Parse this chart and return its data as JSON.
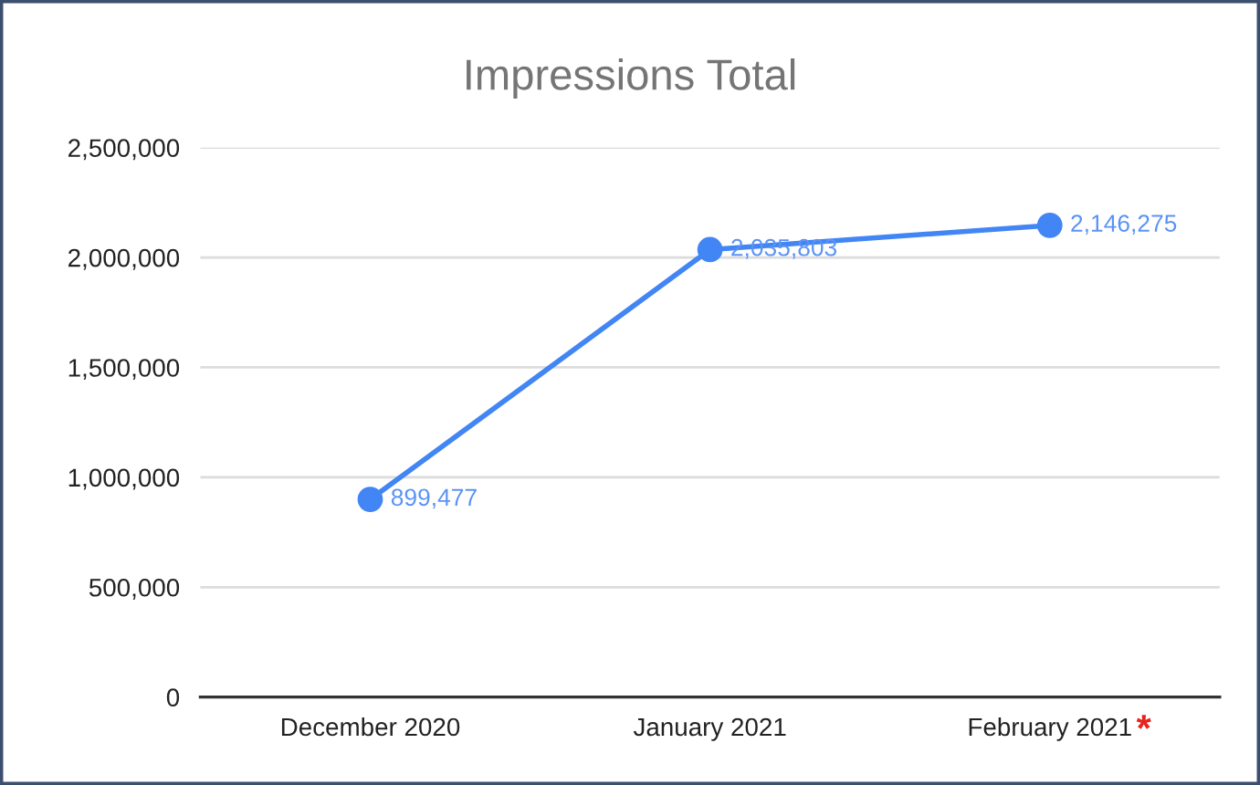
{
  "chart_data": {
    "type": "line",
    "title": "Impressions Total",
    "categories": [
      "December 2020",
      "January 2021",
      "February 2021"
    ],
    "series": [
      {
        "color": "#4285f4",
        "values": [
          899477,
          2035803,
          2146275
        ],
        "value_labels": [
          "899,477",
          "2,035,803",
          "2,146,275"
        ]
      }
    ],
    "ylim": [
      0,
      2500000
    ],
    "yticks": [
      0,
      {
        "value": 500000,
        "label": "500,000"
      },
      {
        "value": 1000000,
        "label": "1,000,000"
      },
      {
        "value": 1500000,
        "label": "1,500,000"
      },
      {
        "value": 2000000,
        "label": "2,000,000"
      },
      {
        "value": 2500000,
        "label": "2,500,000"
      }
    ],
    "grid": "y",
    "marker": "circle",
    "line_style": "solid",
    "annotations": [
      "*"
    ]
  }
}
